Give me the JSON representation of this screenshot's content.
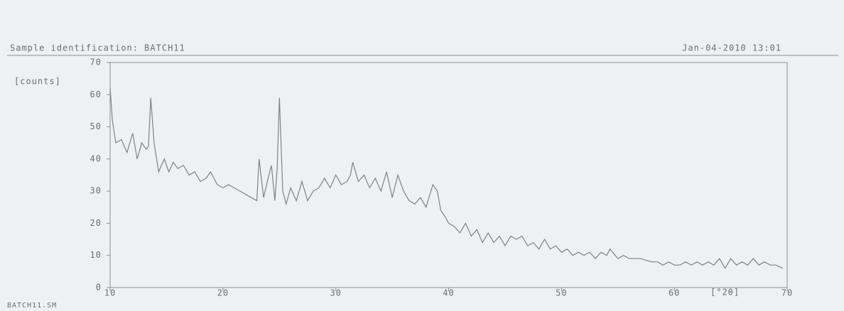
{
  "chart_data": {
    "type": "line",
    "title": "Sample identification: BATCH11",
    "timestamp": "Jan-04-2010 13:01",
    "y_label": "[counts]",
    "x_label": "[°2θ]",
    "file_name": "BATCH11.SM",
    "color": "#7d828c",
    "xlim": [
      10,
      70
    ],
    "xticks": [
      10,
      20,
      30,
      40,
      50,
      60,
      70
    ],
    "ylim": [
      0,
      70
    ],
    "yticks": [
      0,
      10,
      20,
      30,
      40,
      50,
      60,
      70
    ],
    "x": [
      10.0,
      10.2,
      10.5,
      11.0,
      11.5,
      12.0,
      12.4,
      12.8,
      13.2,
      13.4,
      13.6,
      13.9,
      14.3,
      14.8,
      15.2,
      15.6,
      16.0,
      16.5,
      17.0,
      17.5,
      18.0,
      18.5,
      18.9,
      19.5,
      20.0,
      20.5,
      21.0,
      21.5,
      22.0,
      22.5,
      23.0,
      23.2,
      23.6,
      24.0,
      24.3,
      24.6,
      24.8,
      25.0,
      25.3,
      25.6,
      26.0,
      26.5,
      27.0,
      27.5,
      28.0,
      28.5,
      29.0,
      29.5,
      30.0,
      30.5,
      31.0,
      31.3,
      31.5,
      32.0,
      32.5,
      33.0,
      33.5,
      34.0,
      34.5,
      35.0,
      35.5,
      36.0,
      36.5,
      37.0,
      37.5,
      38.0,
      38.6,
      39.0,
      39.3,
      39.7,
      40.0,
      40.5,
      41.0,
      41.5,
      42.0,
      42.5,
      43.0,
      43.5,
      44.0,
      44.5,
      45.0,
      45.5,
      46.0,
      46.5,
      47.0,
      47.5,
      48.0,
      48.5,
      49.0,
      49.5,
      50.0,
      50.5,
      51.0,
      51.5,
      52.0,
      52.5,
      53.0,
      53.5,
      54.0,
      54.3,
      55.0,
      55.5,
      56.0,
      57.0,
      58.0,
      58.5,
      59.0,
      59.5,
      60.0,
      60.5,
      61.0,
      61.5,
      62.0,
      62.5,
      63.0,
      63.5,
      64.0,
      64.5,
      65.0,
      65.5,
      66.0,
      66.5,
      67.0,
      67.5,
      68.0,
      68.5,
      69.0,
      69.6
    ],
    "values": [
      62,
      52,
      45,
      46,
      42,
      48,
      40,
      45,
      43,
      44,
      59,
      45,
      36,
      40,
      36,
      39,
      37,
      38,
      35,
      36,
      33,
      34,
      36,
      32,
      31,
      32,
      31,
      30,
      29,
      28,
      27,
      40,
      28,
      34,
      38,
      27,
      37,
      59,
      30,
      26,
      31,
      27,
      33,
      27,
      30,
      31,
      34,
      31,
      35,
      32,
      33,
      35,
      39,
      33,
      35,
      31,
      34,
      30,
      36,
      28,
      35,
      30,
      27,
      26,
      28,
      25,
      32,
      30,
      24,
      22,
      20,
      19,
      17,
      20,
      16,
      18,
      14,
      17,
      14,
      16,
      13,
      16,
      15,
      16,
      13,
      14,
      12,
      15,
      12,
      13,
      11,
      12,
      10,
      11,
      10,
      11,
      9,
      11,
      10,
      12,
      9,
      10,
      9,
      9,
      8,
      8,
      7,
      8,
      7,
      7,
      8,
      7,
      8,
      7,
      8,
      7,
      9,
      6,
      9,
      7,
      8,
      7,
      9,
      7,
      8,
      7,
      7,
      6
    ]
  }
}
